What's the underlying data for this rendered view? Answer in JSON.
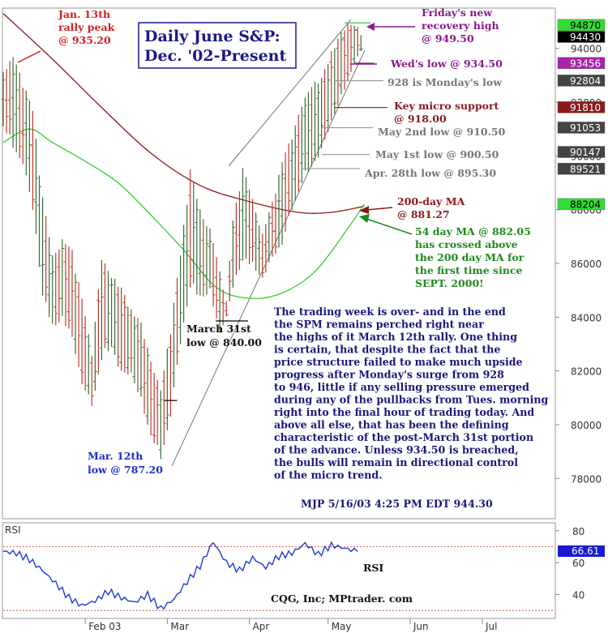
{
  "chart_data": {
    "type": "ohlc",
    "title_lines": [
      "Daily June S&P:",
      "Dec. '02-Present"
    ],
    "price_axis": {
      "ylim": [
        76500,
        95500
      ],
      "ticks": [
        94000,
        92000,
        90000,
        88000,
        86000,
        84000,
        82000,
        80000,
        78000
      ],
      "tick_labels": [
        "94000",
        "92000",
        "90000",
        "88000",
        "86000",
        "84000",
        "82000",
        "80000",
        "78000"
      ]
    },
    "rsi_axis": {
      "label": "RSI",
      "ylim": [
        25,
        85
      ],
      "ticks": [
        80,
        60,
        40
      ],
      "tick_labels": [
        "80",
        "60",
        "40"
      ],
      "reference_lines": [
        70,
        30
      ],
      "value_tag": "66.61",
      "series_label": "RSI"
    },
    "x_axis": {
      "tick_labels": [
        "Feb 03",
        "Mar",
        "Apr",
        "May",
        "Jun",
        "Jul"
      ],
      "tick_days": [
        25,
        50,
        75,
        99,
        124,
        146
      ],
      "total_days": 168
    },
    "price_tags": [
      {
        "value": "94870",
        "price": 94870,
        "style": "green"
      },
      {
        "value": "94430",
        "price": 94430,
        "style": "dark"
      },
      {
        "value": "93456",
        "price": 93456,
        "style": "purple"
      },
      {
        "value": "92804",
        "price": 92804,
        "style": "gray"
      },
      {
        "value": "91810",
        "price": 91810,
        "style": "maroon"
      },
      {
        "value": "91053",
        "price": 91053,
        "style": "gray"
      },
      {
        "value": "90147",
        "price": 90147,
        "style": "gray"
      },
      {
        "value": "89521",
        "price": 89521,
        "style": "gray"
      },
      {
        "value": "88204",
        "price": 88204,
        "style": "green"
      }
    ],
    "ohlc_anchors": [
      [
        0,
        93200,
        91100
      ],
      [
        3,
        93700,
        90300
      ],
      [
        6,
        92800,
        89700
      ],
      [
        9,
        91700,
        88000
      ],
      [
        12,
        88500,
        84800
      ],
      [
        15,
        86300,
        83600
      ],
      [
        18,
        86900,
        83900
      ],
      [
        21,
        86500,
        83200
      ],
      [
        24,
        84700,
        81500
      ],
      [
        27,
        82700,
        80700
      ],
      [
        30,
        86200,
        82400
      ],
      [
        33,
        85600,
        82900
      ],
      [
        36,
        85100,
        81800
      ],
      [
        39,
        84300,
        81900
      ],
      [
        42,
        83800,
        80800
      ],
      [
        45,
        82400,
        79600
      ],
      [
        48,
        81300,
        78720
      ],
      [
        51,
        83600,
        80300
      ],
      [
        54,
        86400,
        83000
      ],
      [
        57,
        89500,
        85100
      ],
      [
        60,
        88000,
        84700
      ],
      [
        63,
        87300,
        84900
      ],
      [
        66,
        85700,
        83400
      ],
      [
        68,
        84600,
        84000
      ],
      [
        70,
        87600,
        85100
      ],
      [
        73,
        89600,
        86100
      ],
      [
        76,
        88400,
        85900
      ],
      [
        79,
        87100,
        85400
      ],
      [
        82,
        88300,
        86200
      ],
      [
        85,
        89800,
        86700
      ],
      [
        88,
        90800,
        88000
      ],
      [
        91,
        91900,
        89000
      ],
      [
        94,
        92700,
        89600
      ],
      [
        97,
        92900,
        90100
      ],
      [
        100,
        93900,
        91300
      ],
      [
        103,
        94600,
        92100
      ],
      [
        105,
        94950,
        92800
      ],
      [
        107,
        94900,
        93450
      ],
      [
        108,
        94800,
        93600
      ],
      [
        109,
        94500,
        93900
      ]
    ],
    "series": [
      {
        "name": "200-day MA",
        "x": [
          0,
          15,
          30,
          45,
          60,
          75,
          90,
          100,
          110
        ],
        "y": [
          95300,
          93600,
          91800,
          90100,
          88900,
          88300,
          87900,
          87900,
          88127
        ]
      },
      {
        "name": "54 day MA",
        "x": [
          0,
          8,
          15,
          25,
          35,
          45,
          55,
          65,
          75,
          85,
          95,
          105,
          110
        ],
        "y": [
          90500,
          91000,
          90500,
          89800,
          89000,
          87800,
          86500,
          85100,
          84700,
          84900,
          85700,
          87300,
          88205
        ]
      },
      {
        "name": "RSI",
        "x": [
          0,
          4,
          8,
          12,
          16,
          20,
          24,
          28,
          32,
          36,
          40,
          44,
          48,
          52,
          56,
          60,
          64,
          68,
          72,
          76,
          80,
          84,
          88,
          92,
          96,
          100,
          104,
          108
        ],
        "y": [
          67,
          66,
          62,
          55,
          47,
          38,
          33,
          36,
          42,
          38,
          35,
          40,
          31,
          37,
          48,
          58,
          73,
          60,
          55,
          63,
          57,
          64,
          66,
          72,
          65,
          71,
          69,
          67
        ]
      }
    ],
    "annotations": {
      "jan13": [
        "Jan. 13th",
        "rally peak",
        "@ 935.20"
      ],
      "mar12": [
        "Mar. 12th",
        "low @ 787.20"
      ],
      "mar31": [
        "March 31st",
        "low @ 840.00"
      ],
      "friday": [
        "Friday's new",
        "recovery high",
        "@ 949.50"
      ],
      "weds": "Wed's low @ 934.50",
      "monday": "928 is Monday's low",
      "key_micro": [
        "Key micro support",
        "@ 918.00"
      ],
      "may2": "May 2nd low @ 910.50",
      "may1": "May 1st low @ 900.50",
      "apr28": "Apr. 28th low @ 895.30",
      "ma200": [
        "200-day MA",
        "@ 881.27"
      ],
      "ma54": [
        "54 day MA @ 882.05",
        "has crossed above",
        "the 200 day MA for",
        "the first time since",
        "SEPT. 2000!"
      ]
    },
    "commentary": [
      "The trading week is over- and in the end",
      "the SPM remains perched right near",
      "the highs of it March 12th rally. One thing",
      "is certain, that despite the fact that the",
      "price structure failed to make much upside",
      "progress after Monday's surge from 928",
      "to 946, little if any selling pressure emerged",
      "during any of the pullbacks from Tues. morning",
      "right into the final hour of trading today. And",
      "above all else, that has been the defining",
      "characteristic of the post-March 31st portion",
      "of the advance. Unless 934.50 is breached,",
      "the bulls will remain in directional control",
      "of the micro trend."
    ],
    "signature": "MJP  5/16/03  4:25 PM EDT  944.30",
    "credit": "CQG, Inc; MPtrader. com",
    "colors": {
      "bar_up": "#3a6b3a",
      "bar_down": "#c0392b",
      "ma200": "#8b1a1a",
      "ma54": "#33cc33",
      "rsi": "#1a3fd0",
      "title_box": "#1a1a8a",
      "channel": "#666666"
    }
  }
}
